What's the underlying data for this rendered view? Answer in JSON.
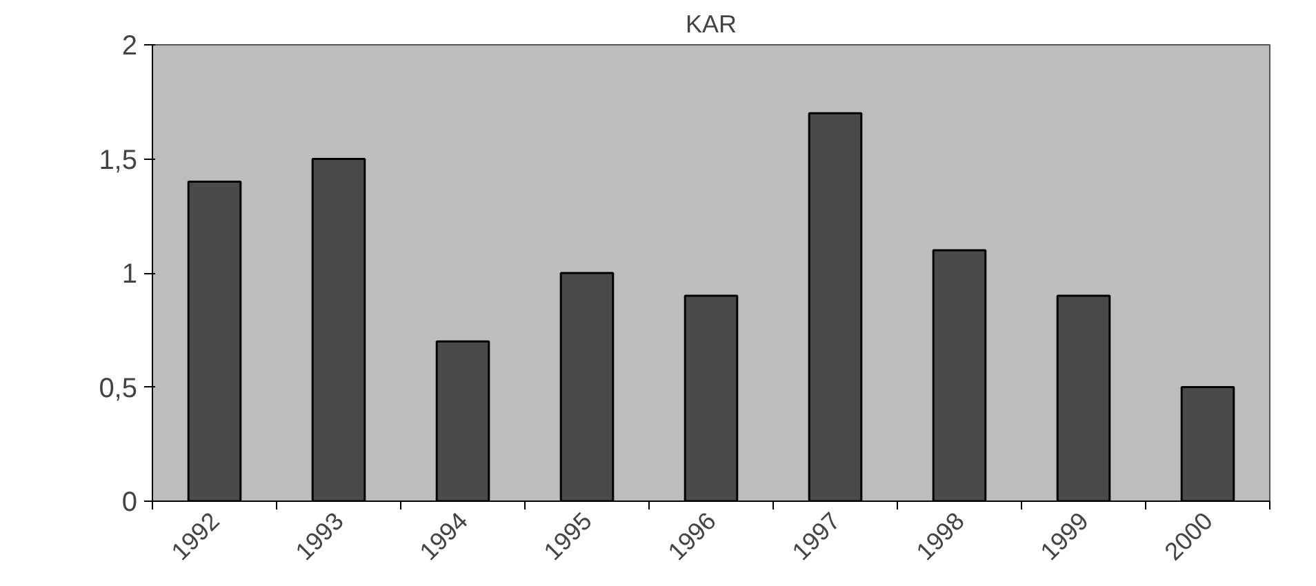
{
  "chart_data": {
    "type": "bar",
    "title": "KAR",
    "categories": [
      "1992",
      "1993",
      "1994",
      "1995",
      "1996",
      "1997",
      "1998",
      "1999",
      "2000"
    ],
    "values": [
      1.4,
      1.5,
      0.7,
      1.0,
      0.9,
      1.7,
      1.1,
      0.9,
      0.5
    ],
    "color": "#4a4a4a",
    "ylim": [
      0,
      2
    ],
    "yticks": [
      0,
      {
        "value": 0.5,
        "label": "0,5"
      },
      1,
      {
        "value": 1.5,
        "label": "1,5"
      },
      2
    ],
    "grid": false
  }
}
